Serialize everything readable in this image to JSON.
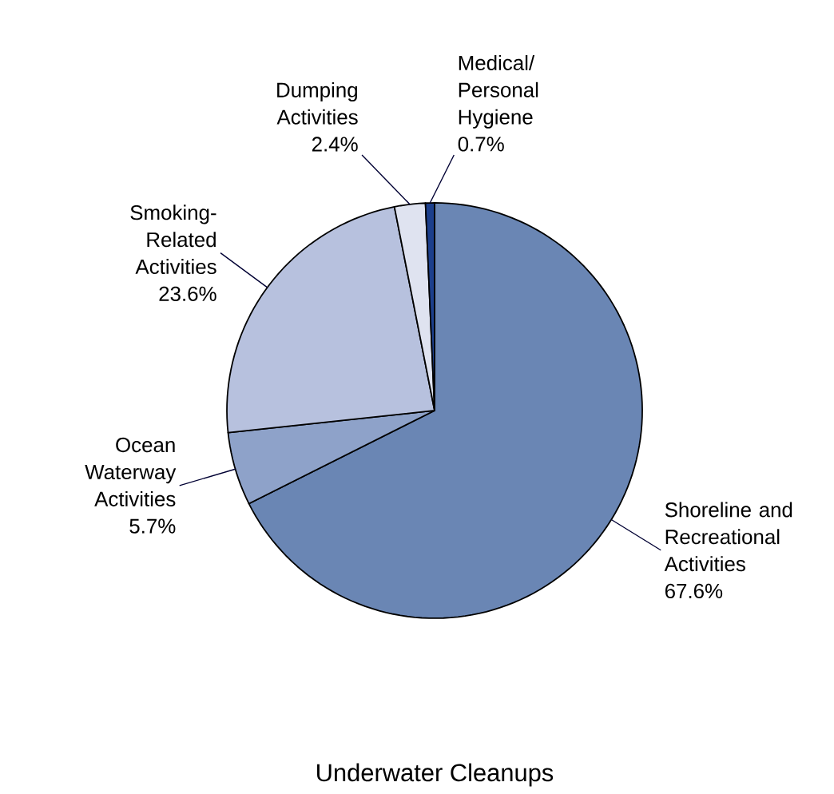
{
  "chart_data": {
    "type": "pie",
    "title": "Underwater Cleanups",
    "categories": [
      "Shoreline and Recreational Activities",
      "Ocean Waterway Activities",
      "Smoking-Related Activities",
      "Dumping Activities",
      "Medical/ Personal Hygiene"
    ],
    "values": [
      67.6,
      5.7,
      23.6,
      2.4,
      0.7
    ],
    "value_labels": [
      "67.6%",
      "5.7%",
      "23.6%",
      "2.4%",
      "0.7%"
    ],
    "colors": [
      "#6a86b4",
      "#8ea2c9",
      "#b7c1de",
      "#dfe3f0",
      "#1c3f8c"
    ]
  }
}
